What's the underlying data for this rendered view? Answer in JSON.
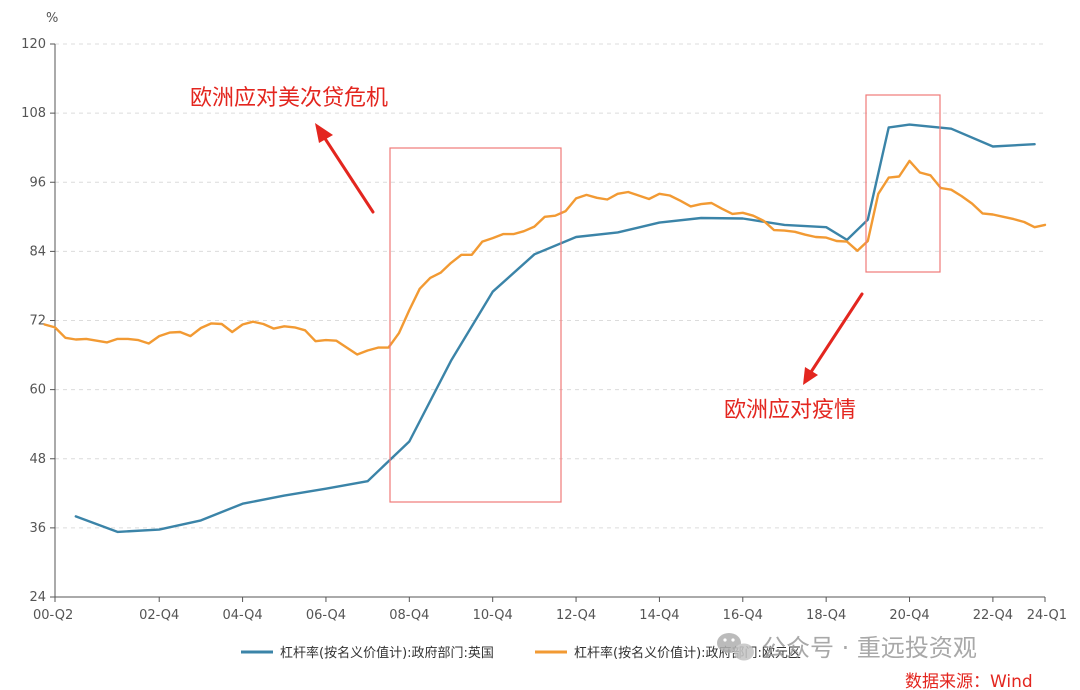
{
  "chart_data": {
    "type": "line",
    "ylabel": "%",
    "ylim": [
      24,
      120
    ],
    "yticks": [
      24,
      36,
      48,
      60,
      72,
      84,
      96,
      108,
      120
    ],
    "xlim": [
      2000.375,
      2024.125
    ],
    "xticks": [
      {
        "label": "00-Q2",
        "value": 2000.375
      },
      {
        "label": "02-Q4",
        "value": 2002.875
      },
      {
        "label": "04-Q4",
        "value": 2004.875
      },
      {
        "label": "06-Q4",
        "value": 2006.875
      },
      {
        "label": "08-Q4",
        "value": 2008.875
      },
      {
        "label": "10-Q4",
        "value": 2010.875
      },
      {
        "label": "12-Q4",
        "value": 2012.875
      },
      {
        "label": "14-Q4",
        "value": 2014.875
      },
      {
        "label": "16-Q4",
        "value": 2016.875
      },
      {
        "label": "18-Q4",
        "value": 2018.875
      },
      {
        "label": "20-Q4",
        "value": 2020.875
      },
      {
        "label": "22-Q4",
        "value": 2022.875
      },
      {
        "label": "24-Q1",
        "value": 2024.125
      }
    ],
    "grid": "horizontal dashed",
    "legend_position": "bottom",
    "series": [
      {
        "name": "杠杆率(按名义价值计):政府部门:英国",
        "color": "#3b84a8",
        "x": [
          2000.875,
          2001.875,
          2002.875,
          2003.875,
          2004.875,
          2005.875,
          2006.875,
          2007.875,
          2008.875,
          2009.875,
          2010.875,
          2011.875,
          2012.875,
          2013.875,
          2014.875,
          2015.875,
          2016.875,
          2017.875,
          2018.875,
          2019.375,
          2019.875,
          2020.375,
          2020.875,
          2021.875,
          2022.875,
          2023.875
        ],
        "y": [
          38,
          35.3,
          35.7,
          37.3,
          40.2,
          41.6,
          42.8,
          44.1,
          51,
          65,
          77,
          83.5,
          86.5,
          87.3,
          89,
          89.8,
          89.7,
          88.6,
          88.2,
          86,
          89.5,
          105.5,
          106,
          105.3,
          102.2,
          102.6
        ]
      },
      {
        "name": "杠杆率(按名义价值计):政府部门:欧元区",
        "color": "#f29a33",
        "x": [
          2000.125,
          2000.375,
          2000.625,
          2000.875,
          2001.125,
          2001.375,
          2001.625,
          2001.875,
          2002.125,
          2002.375,
          2002.625,
          2002.875,
          2003.125,
          2003.375,
          2003.625,
          2003.875,
          2004.125,
          2004.375,
          2004.625,
          2004.875,
          2005.125,
          2005.375,
          2005.625,
          2005.875,
          2006.125,
          2006.375,
          2006.625,
          2006.875,
          2007.125,
          2007.375,
          2007.625,
          2007.875,
          2008.125,
          2008.375,
          2008.625,
          2008.875,
          2009.125,
          2009.375,
          2009.625,
          2009.875,
          2010.125,
          2010.375,
          2010.625,
          2010.875,
          2011.125,
          2011.375,
          2011.625,
          2011.875,
          2012.125,
          2012.375,
          2012.625,
          2012.875,
          2013.125,
          2013.375,
          2013.625,
          2013.875,
          2014.125,
          2014.375,
          2014.625,
          2014.875,
          2015.125,
          2015.375,
          2015.625,
          2015.875,
          2016.125,
          2016.375,
          2016.625,
          2016.875,
          2017.125,
          2017.375,
          2017.625,
          2017.875,
          2018.125,
          2018.375,
          2018.625,
          2018.875,
          2019.125,
          2019.375,
          2019.625,
          2019.875,
          2020.125,
          2020.375,
          2020.625,
          2020.875,
          2021.125,
          2021.375,
          2021.625,
          2021.875,
          2022.125,
          2022.375,
          2022.625,
          2022.875,
          2023.125,
          2023.375,
          2023.625,
          2023.875,
          2024.125
        ],
        "y": [
          71.3,
          70.8,
          69,
          68.7,
          68.8,
          68.5,
          68.2,
          68.8,
          68.8,
          68.6,
          68,
          69.3,
          69.9,
          70,
          69.3,
          70.7,
          71.5,
          71.4,
          70,
          71.3,
          71.8,
          71.4,
          70.6,
          71,
          70.8,
          70.3,
          68.4,
          68.6,
          68.5,
          67.3,
          66.1,
          66.8,
          67.3,
          67.3,
          69.8,
          73.8,
          77.5,
          79.4,
          80.3,
          82,
          83.4,
          83.4,
          85.7,
          86.3,
          87,
          87,
          87.5,
          88.3,
          90,
          90.2,
          91,
          93.2,
          93.8,
          93.3,
          93,
          94,
          94.3,
          93.7,
          93.1,
          94,
          93.7,
          92.8,
          91.8,
          92.2,
          92.4,
          91.4,
          90.5,
          90.7,
          90.2,
          89.3,
          87.7,
          87.6,
          87.4,
          86.9,
          86.5,
          86.4,
          85.8,
          85.7,
          84.1,
          85.8,
          94,
          96.8,
          97,
          99.7,
          97.7,
          97.2,
          95,
          94.7,
          93.6,
          92.3,
          90.6,
          90.4,
          90,
          89.6,
          89.1,
          88.2,
          88.6
        ]
      }
    ],
    "annotations": [
      {
        "text": "欧洲应对美次贷危机"
      },
      {
        "text": "欧洲应对疫情"
      }
    ]
  },
  "watermark": "公众号 · 重远投资观",
  "source": "数据来源：Wind",
  "colors": {
    "annotation": "#e3261f",
    "grid": "#dcdcdc",
    "axis": "#555555"
  }
}
